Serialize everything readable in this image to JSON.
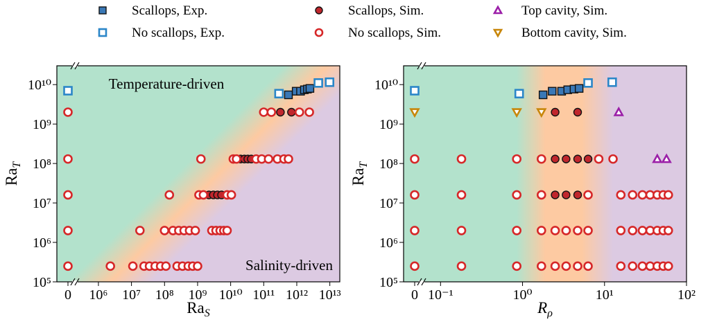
{
  "chart_data": [
    {
      "type": "scatter",
      "xlabel": {
        "base": "Ra",
        "sub": "S"
      },
      "ylabel": {
        "base": "Ra",
        "sub": "T"
      },
      "xlog": true,
      "ylog": true,
      "xlim": [
        300000,
        20000000000000.0
      ],
      "ylim": [
        100000,
        30000000000.0
      ],
      "xticks": [
        0,
        {
          "value": 1000000.0,
          "label": "10⁶"
        },
        {
          "value": 10000000.0,
          "label": "10⁷"
        },
        {
          "value": 100000000.0,
          "label": "10⁸"
        },
        {
          "value": 1000000000.0,
          "label": "10⁹"
        },
        {
          "value": 10000000000.0,
          "label": "10¹⁰"
        },
        {
          "value": 100000000000.0,
          "label": "10¹¹"
        },
        {
          "value": 1000000000000.0,
          "label": "10¹²"
        },
        {
          "value": 10000000000000.0,
          "label": "10¹³"
        }
      ],
      "yticks": [
        {
          "value": 100000.0,
          "label": "10⁵"
        },
        {
          "value": 1000000.0,
          "label": "10⁶"
        },
        {
          "value": 10000000.0,
          "label": "10⁷"
        },
        {
          "value": 100000000.0,
          "label": "10⁸"
        },
        {
          "value": 1000000000.0,
          "label": "10⁹"
        },
        {
          "value": 10000000000.0,
          "label": "10¹⁰"
        }
      ],
      "annotations": [
        "Temperature-driven",
        "Salinity-driven"
      ],
      "series": [
        {
          "name": "Scallops, Exp.",
          "color": "#3a78b6",
          "marker": "s",
          "filled": true,
          "x": [
            560000000000.0,
            960000000000.0,
            1300000000000.0,
            1700000000000.0,
            2100000000000.0,
            2500000000000.0
          ],
          "y": [
            5500000000.0,
            6800000000.0,
            6800000000.0,
            7400000000.0,
            7700000000.0,
            8000000000.0
          ]
        },
        {
          "name": "No scallops, Exp.",
          "color": "#2b86c8",
          "marker": "s",
          "filled": false,
          "x": [
            0,
            290000000000.0,
            4500000000000.0,
            9800000000000.0
          ],
          "y": [
            7000000000.0,
            5900000000.0,
            11000000000.0,
            11500000000.0
          ]
        },
        {
          "name": "Scallops, Sim.",
          "color": "#c0272d",
          "marker": "o",
          "filled": true,
          "x": [
            2200000000.0,
            3000000000.0,
            4000000000.0,
            5300000000.0,
            20000000000.0,
            26000000000.0,
            33000000000.0,
            42000000000.0,
            320000000000.0,
            690000000000.0
          ],
          "y": [
            16000000.0,
            16000000.0,
            16000000.0,
            16000000.0,
            130000000.0,
            130000000.0,
            130000000.0,
            130000000.0,
            2000000000.0,
            2000000000.0
          ]
        },
        {
          "name": "No scallops, Sim.",
          "color": "#d62728",
          "marker": "o",
          "filled": false,
          "x": [
            0,
            2300000.0,
            11000000.0,
            24000000.0,
            35000000.0,
            52000000.0,
            76000000.0,
            110000000.0,
            240000000.0,
            350000000.0,
            520000000.0,
            710000000.0,
            1000000000.0,
            0,
            18000000.0,
            100000000.0,
            180000000.0,
            270000000.0,
            390000000.0,
            570000000.0,
            850000000.0,
            2700000000.0,
            3600000000.0,
            4800000000.0,
            6200000000.0,
            7800000000.0,
            0,
            140000000.0,
            1100000000.0,
            1500000000.0,
            7800000000.0,
            10500000000.0,
            0,
            1260000000.0,
            12000000000.0,
            15000000000.0,
            59000000000.0,
            87000000000.0,
            140000000000.0,
            260000000000.0,
            410000000000.0,
            560000000000.0,
            0,
            100000000000.0,
            170000000000.0,
            1200000000000.0,
            2400000000000.0
          ],
          "y": [
            250000.0,
            250000.0,
            250000.0,
            250000.0,
            250000.0,
            250000.0,
            250000.0,
            250000.0,
            250000.0,
            250000.0,
            250000.0,
            250000.0,
            250000.0,
            2000000.0,
            2000000.0,
            2000000.0,
            2000000.0,
            2000000.0,
            2000000.0,
            2000000.0,
            2000000.0,
            2000000.0,
            2000000.0,
            2000000.0,
            2000000.0,
            2000000.0,
            16000000.0,
            16000000.0,
            16000000.0,
            16000000.0,
            16000000.0,
            16000000.0,
            130000000.0,
            130000000.0,
            130000000.0,
            130000000.0,
            130000000.0,
            130000000.0,
            130000000.0,
            130000000.0,
            130000000.0,
            130000000.0,
            2000000000.0,
            2000000000.0,
            2000000000.0,
            2000000000.0,
            2000000000.0
          ]
        }
      ]
    },
    {
      "type": "scatter",
      "xlabel": {
        "base": "R",
        "sub": "ρ"
      },
      "ylabel": {
        "base": "Ra",
        "sub": "T"
      },
      "xlabel_italic": true,
      "xlog": true,
      "ylog": true,
      "xlim": [
        0.07,
        100
      ],
      "ylim": [
        100000,
        30000000000.0
      ],
      "xticks": [
        0,
        {
          "value": 0.1,
          "label": "10⁻¹"
        },
        {
          "value": 1,
          "label": "10⁰"
        },
        {
          "value": 10,
          "label": "10¹"
        },
        {
          "value": 100,
          "label": "10²"
        }
      ],
      "yticks": [
        {
          "value": 100000.0,
          "label": "10⁵"
        },
        {
          "value": 1000000.0,
          "label": "10⁶"
        },
        {
          "value": 10000000.0,
          "label": "10⁷"
        },
        {
          "value": 100000000.0,
          "label": "10⁸"
        },
        {
          "value": 1000000000.0,
          "label": "10⁹"
        },
        {
          "value": 10000000000.0,
          "label": "10¹⁰"
        }
      ],
      "series": [
        {
          "name": "Scallops, Exp.",
          "color": "#3a78b6",
          "marker": "s",
          "filled": true,
          "x": [
            1.78,
            2.3,
            3.0,
            3.56,
            4.25,
            4.9
          ],
          "y": [
            5500000000.0,
            6800000000.0,
            6800000000.0,
            7400000000.0,
            7700000000.0,
            8000000000.0
          ]
        },
        {
          "name": "No scallops, Exp.",
          "color": "#2b86c8",
          "marker": "s",
          "filled": false,
          "x": [
            0,
            0.91,
            6.3,
            12.4
          ],
          "y": [
            7000000000.0,
            5900000000.0,
            11000000000.0,
            11500000000.0
          ]
        },
        {
          "name": "Scallops, Sim.",
          "color": "#c0272d",
          "marker": "o",
          "filled": true,
          "x": [
            2.5,
            3.4,
            4.7,
            2.5,
            3.4,
            4.7,
            6.3,
            2.5,
            4.7
          ],
          "y": [
            16000000.0,
            16000000.0,
            16000000.0,
            130000000.0,
            130000000.0,
            130000000.0,
            130000000.0,
            2000000000.0,
            2000000000.0
          ]
        },
        {
          "name": "No scallops, Sim.",
          "color": "#d62728",
          "marker": "o",
          "filled": false,
          "x": [
            0,
            0.18,
            0.85,
            1.7,
            2.5,
            3.4,
            4.7,
            6.3,
            15.8,
            22,
            29,
            36,
            44,
            52,
            60,
            0,
            0.18,
            0.85,
            1.7,
            2.5,
            3.4,
            4.7,
            6.3,
            15.8,
            22,
            29,
            36,
            44,
            52,
            60,
            0,
            0.18,
            0.85,
            1.7,
            6.3,
            15.8,
            22,
            29,
            36,
            44,
            52,
            60,
            0,
            0.18,
            0.85,
            1.7,
            8.5,
            12.7
          ],
          "y": [
            250000.0,
            250000.0,
            250000.0,
            250000.0,
            250000.0,
            250000.0,
            250000.0,
            250000.0,
            250000.0,
            250000.0,
            250000.0,
            250000.0,
            250000.0,
            250000.0,
            250000.0,
            2000000.0,
            2000000.0,
            2000000.0,
            2000000.0,
            2000000.0,
            2000000.0,
            2000000.0,
            2000000.0,
            2000000.0,
            2000000.0,
            2000000.0,
            2000000.0,
            2000000.0,
            2000000.0,
            2000000.0,
            16000000.0,
            16000000.0,
            16000000.0,
            16000000.0,
            16000000.0,
            16000000.0,
            16000000.0,
            16000000.0,
            16000000.0,
            16000000.0,
            16000000.0,
            16000000.0,
            130000000.0,
            130000000.0,
            130000000.0,
            130000000.0,
            130000000.0,
            130000000.0
          ]
        },
        {
          "name": "Top cavity, Sim.",
          "color": "#9b1fa8",
          "marker": "^",
          "filled": false,
          "x": [
            44,
            57,
            14.9
          ],
          "y": [
            130000000.0,
            130000000.0,
            2000000000.0
          ]
        },
        {
          "name": "Bottom cavity, Sim.",
          "color": "#c8860a",
          "marker": "v",
          "filled": false,
          "x": [
            0,
            0.85,
            1.7
          ],
          "y": [
            2000000000.0,
            2000000000.0,
            2000000000.0
          ]
        }
      ]
    }
  ]
}
